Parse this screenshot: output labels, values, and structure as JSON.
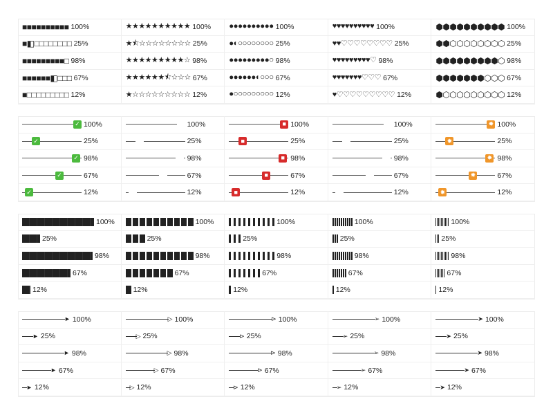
{
  "rows": [
    {
      "label": "100%",
      "value": 1.0
    },
    {
      "label": "25%",
      "value": 0.25
    },
    {
      "label": "98%",
      "value": 0.98
    },
    {
      "label": "67%",
      "value": 0.67
    },
    {
      "label": "12%",
      "value": 0.12
    }
  ],
  "ratings": [
    {
      "icon": "square-icon",
      "full": "■",
      "half": "◧",
      "empty": "□",
      "cls": "sq"
    },
    {
      "icon": "star-icon",
      "full": "★",
      "half": "⯪",
      "empty": "☆",
      "cls": "star"
    },
    {
      "icon": "circle-icon",
      "full": "●",
      "half": "◐",
      "empty": "○",
      "cls": "circ"
    },
    {
      "icon": "heart-icon",
      "full": "♥",
      "half": "♥",
      "empty": "♡",
      "cls": "heart"
    },
    {
      "icon": "hexagon-icon",
      "full": "⬢",
      "half": "⬢",
      "empty": "⬡",
      "cls": "hex"
    }
  ],
  "sliders": [
    {
      "icon": "checkmark-icon",
      "glyph": "✓",
      "cls": "k-check"
    },
    {
      "icon": "star-icon",
      "glyph": "★",
      "cls": "k-star"
    },
    {
      "icon": "red-badge-icon",
      "glyph": "■",
      "cls": "k-red"
    },
    {
      "icon": "diamond-icon",
      "glyph": "◆",
      "cls": "k-dia"
    },
    {
      "icon": "sun-icon",
      "glyph": "✸",
      "cls": "k-sun"
    }
  ],
  "bars": [
    {
      "style": "solid"
    },
    {
      "style": "blocks"
    },
    {
      "style": "thin-blocks"
    },
    {
      "style": "dense-blocks"
    },
    {
      "style": "hairline-blocks"
    }
  ],
  "arrows": [
    {
      "icon": "arrowhead-filled-icon",
      "head": "►"
    },
    {
      "icon": "arrowhead-open-icon",
      "head": "▷"
    },
    {
      "icon": "arrowhead-tag-icon",
      "head": "⊳"
    },
    {
      "icon": "arrowhead-barbed-icon",
      "head": "➢"
    },
    {
      "icon": "arrowhead-narrow-icon",
      "head": "➤"
    }
  ]
}
